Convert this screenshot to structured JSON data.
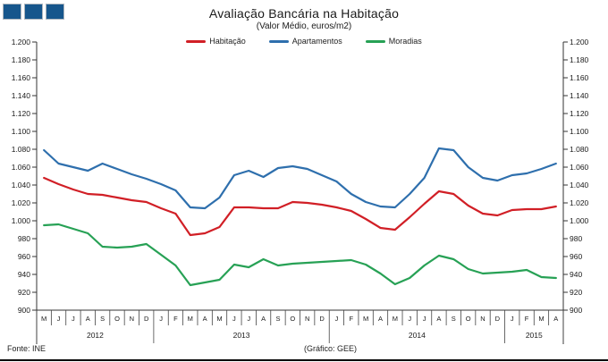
{
  "logo": {
    "square_count": 3,
    "color": "#16568c"
  },
  "header": {
    "title": "Avaliação Bancária na Habitação",
    "subtitle": "(Valor Médio, euros/m2)"
  },
  "footer": {
    "source": "Fonte: INE",
    "credit": "(Gráfico: GEE)"
  },
  "chart_data": {
    "type": "line",
    "title": "Avaliação Bancária na Habitação",
    "subtitle": "(Valor Médio, euros/m2)",
    "ylabel": "euros/m2",
    "ylim": [
      900,
      1200
    ],
    "ytick_step": 20,
    "ytick_labels": [
      "1.200",
      "1.180",
      "1.160",
      "1.140",
      "1.120",
      "1.100",
      "1.080",
      "1.060",
      "1.040",
      "1.020",
      "1.000",
      "980",
      "960",
      "940",
      "920",
      "900"
    ],
    "grid": false,
    "legend_position": "top",
    "x_months": [
      "M",
      "J",
      "J",
      "A",
      "S",
      "O",
      "N",
      "D",
      "J",
      "F",
      "M",
      "A",
      "M",
      "J",
      "J",
      "A",
      "S",
      "O",
      "N",
      "D",
      "J",
      "F",
      "M",
      "A",
      "M",
      "J",
      "J",
      "A",
      "S",
      "O",
      "N",
      "D",
      "J",
      "F",
      "M",
      "A"
    ],
    "year_groups": [
      {
        "label": "2012",
        "count": 8
      },
      {
        "label": "2013",
        "count": 12
      },
      {
        "label": "2014",
        "count": 12
      },
      {
        "label": "2015",
        "count": 4
      }
    ],
    "series": [
      {
        "name": "Habitação",
        "color": "#d11f26",
        "values": [
          1048,
          1041,
          1035,
          1030,
          1029,
          1026,
          1023,
          1021,
          1014,
          1008,
          984,
          986,
          993,
          1015,
          1015,
          1014,
          1014,
          1021,
          1020,
          1018,
          1015,
          1011,
          1002,
          992,
          990,
          1004,
          1019,
          1033,
          1030,
          1017,
          1008,
          1006,
          1012,
          1013,
          1013,
          1016
        ]
      },
      {
        "name": "Apartamentos",
        "color": "#2e6fad",
        "values": [
          1079,
          1064,
          1060,
          1056,
          1064,
          1058,
          1052,
          1047,
          1041,
          1034,
          1015,
          1014,
          1026,
          1051,
          1056,
          1049,
          1059,
          1061,
          1058,
          1051,
          1044,
          1030,
          1021,
          1016,
          1015,
          1030,
          1048,
          1081,
          1079,
          1060,
          1048,
          1045,
          1051,
          1053,
          1058,
          1064
        ]
      },
      {
        "name": "Moradias",
        "color": "#27a155",
        "values": [
          995,
          996,
          991,
          986,
          971,
          970,
          971,
          974,
          962,
          950,
          928,
          931,
          934,
          951,
          948,
          957,
          950,
          952,
          953,
          954,
          955,
          956,
          951,
          941,
          929,
          936,
          950,
          961,
          957,
          946,
          941,
          942,
          943,
          945,
          937,
          936
        ]
      }
    ]
  }
}
